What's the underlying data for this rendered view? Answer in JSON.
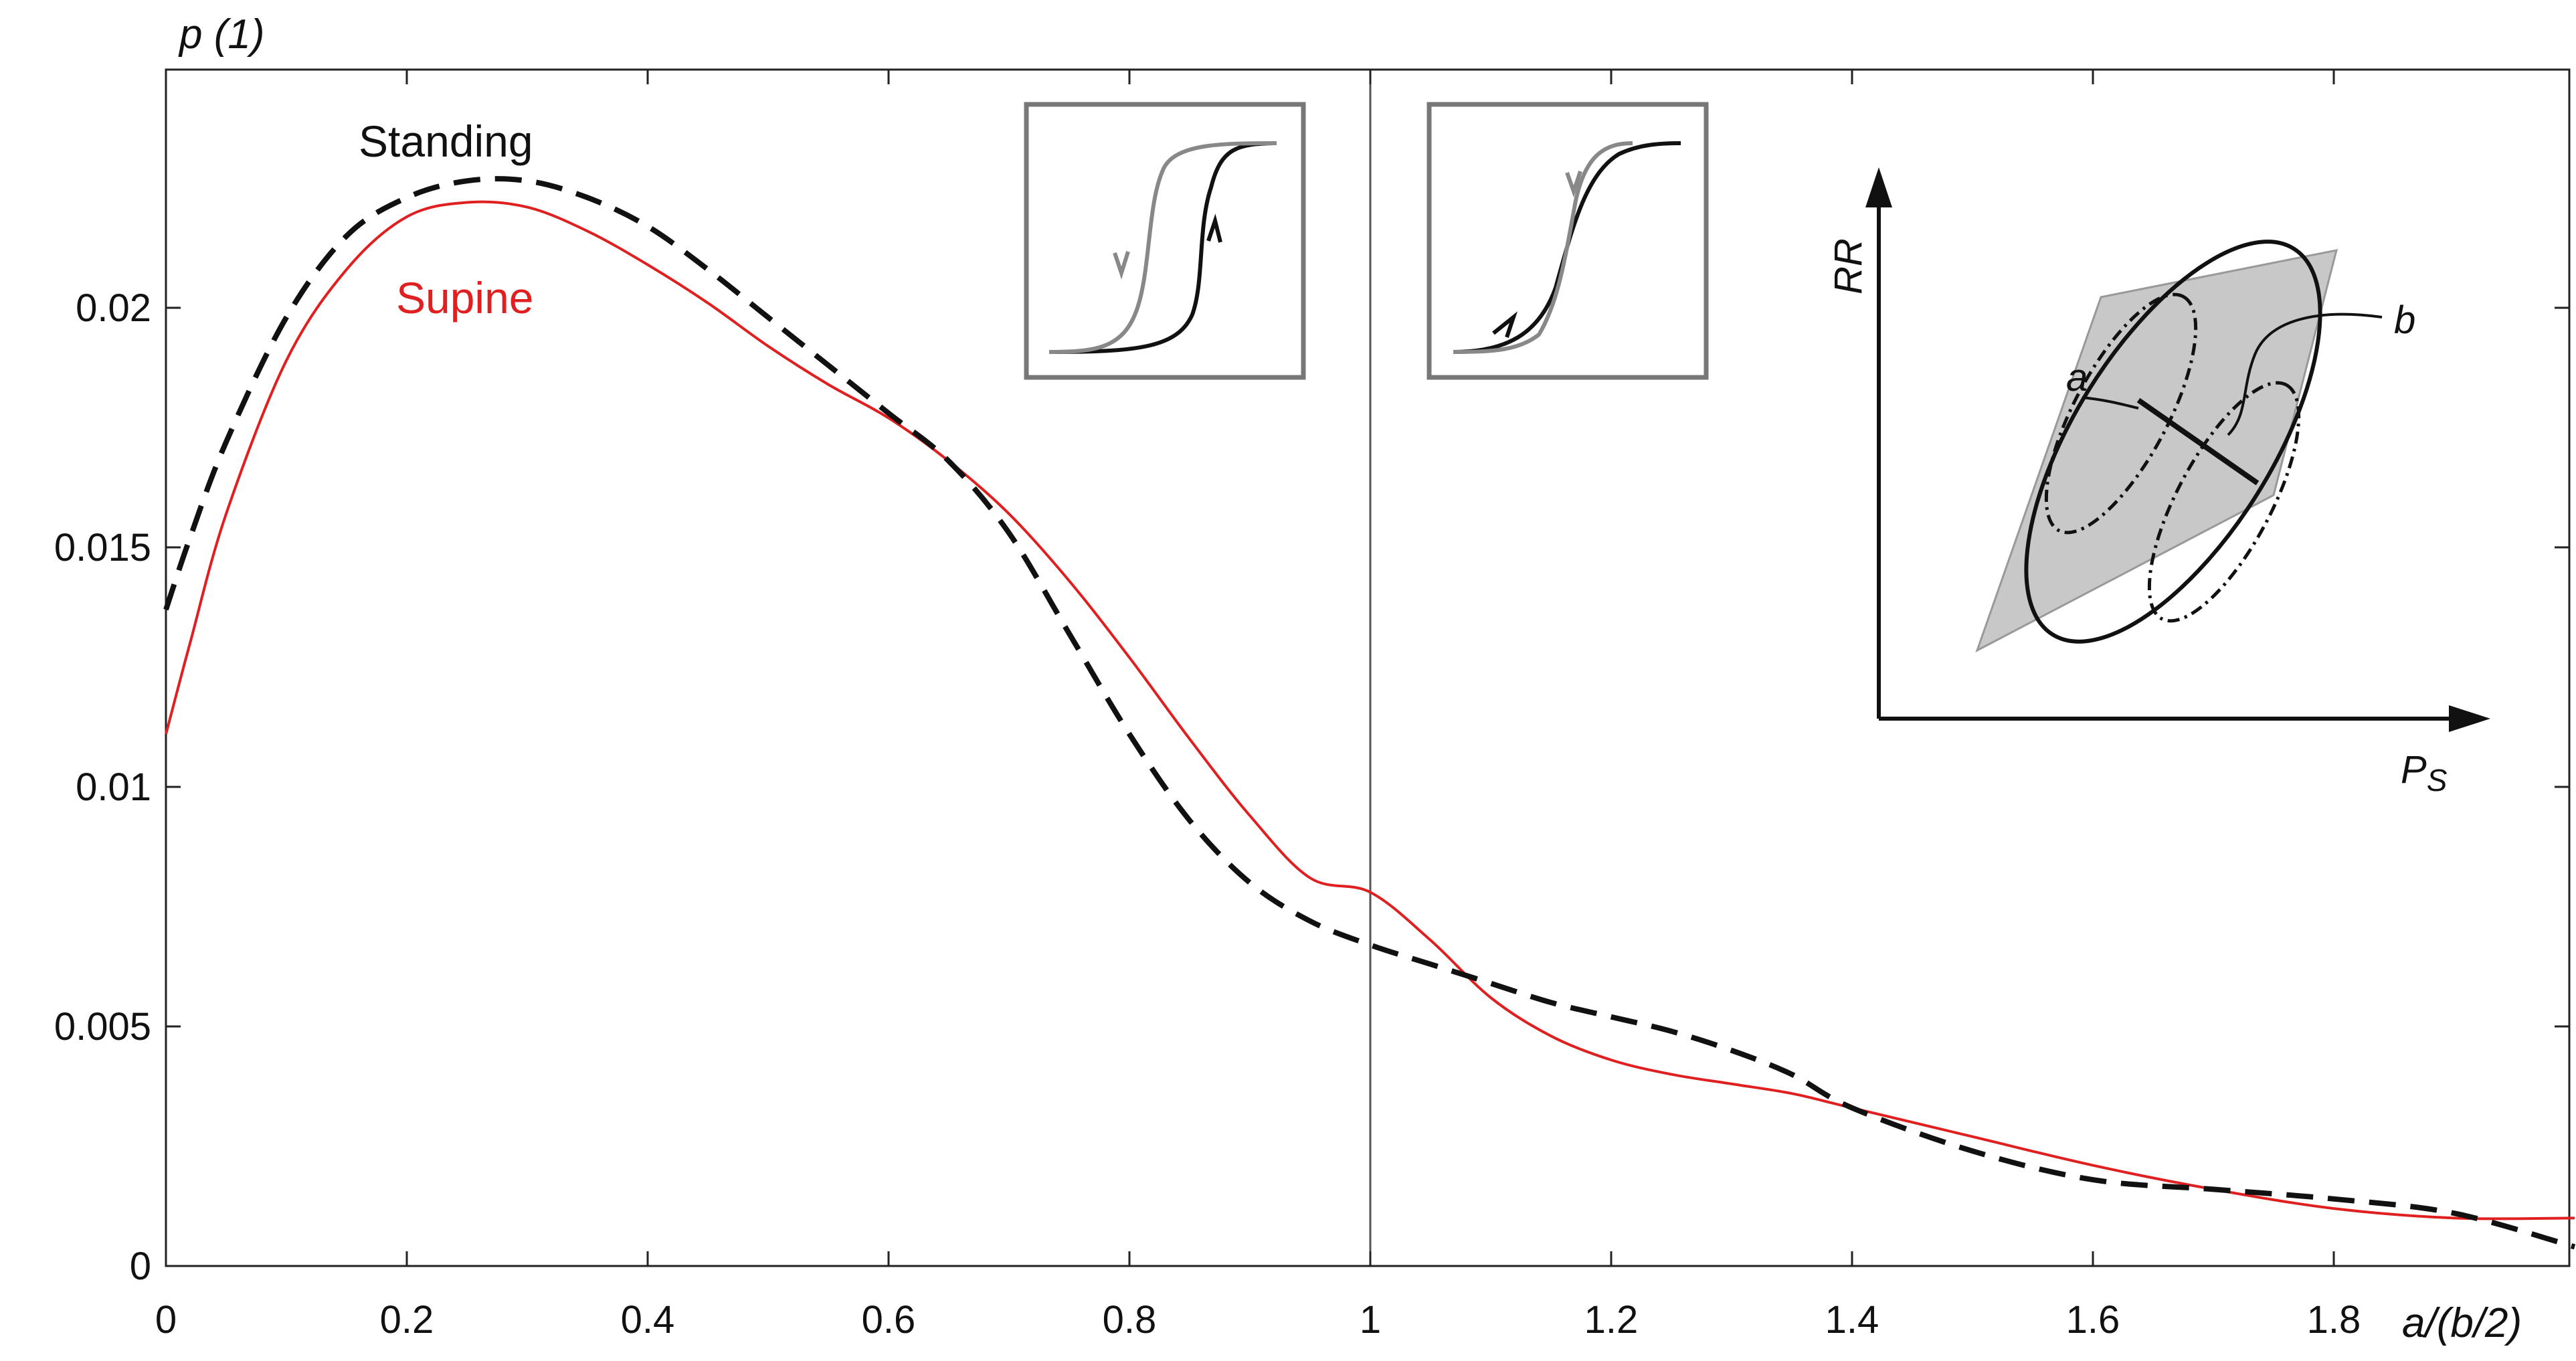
{
  "chart_data": {
    "type": "line",
    "title": "",
    "xlabel": "a/(b/2)",
    "ylabel": "p (1)",
    "xlim": [
      0,
      2.0
    ],
    "ylim": [
      0,
      0.025
    ],
    "x_ticks": [
      "0",
      "0.2",
      "0.4",
      "0.6",
      "0.8",
      "1",
      "1.2",
      "1.4",
      "1.6",
      "1.8"
    ],
    "y_ticks": [
      "0",
      "0.005",
      "0.01",
      "0.015",
      "0.02"
    ],
    "grid": false,
    "vertical_reference_line": 1,
    "series": [
      {
        "name": "Standing",
        "color": "#111111",
        "style": "dashed",
        "x": [
          0,
          0.02,
          0.05,
          0.1,
          0.15,
          0.2,
          0.25,
          0.3,
          0.35,
          0.4,
          0.45,
          0.5,
          0.55,
          0.6,
          0.65,
          0.7,
          0.75,
          0.8,
          0.85,
          0.9,
          0.95,
          1.0,
          1.05,
          1.1,
          1.15,
          1.2,
          1.25,
          1.3,
          1.35,
          1.4,
          1.5,
          1.6,
          1.7,
          1.8,
          1.9,
          2.0
        ],
        "y": [
          0.0137,
          0.0152,
          0.0172,
          0.0198,
          0.0215,
          0.0223,
          0.02265,
          0.02265,
          0.0223,
          0.0217,
          0.0208,
          0.0198,
          0.0188,
          0.0178,
          0.0168,
          0.0153,
          0.0132,
          0.0111,
          0.0093,
          0.008,
          0.0072,
          0.0067,
          0.0063,
          0.0059,
          0.0055,
          0.0052,
          0.0049,
          0.0045,
          0.004,
          0.0033,
          0.0024,
          0.0018,
          0.0016,
          0.0014,
          0.0011,
          0.0004
        ]
      },
      {
        "name": "Supine",
        "color": "#e02020",
        "style": "solid",
        "x": [
          0,
          0.02,
          0.05,
          0.1,
          0.15,
          0.2,
          0.25,
          0.3,
          0.35,
          0.4,
          0.45,
          0.5,
          0.55,
          0.6,
          0.65,
          0.7,
          0.75,
          0.8,
          0.85,
          0.9,
          0.95,
          1.0,
          1.05,
          1.1,
          1.15,
          1.2,
          1.25,
          1.3,
          1.35,
          1.4,
          1.5,
          1.6,
          1.7,
          1.8,
          1.9,
          2.0
        ],
        "y": [
          0.0111,
          0.013,
          0.0157,
          0.0189,
          0.0208,
          0.0219,
          0.0222,
          0.0221,
          0.0216,
          0.0209,
          0.0201,
          0.0192,
          0.0184,
          0.0177,
          0.0168,
          0.0157,
          0.0143,
          0.0127,
          0.011,
          0.0094,
          0.0081,
          0.0078,
          0.0068,
          0.0056,
          0.0048,
          0.0043,
          0.004,
          0.0038,
          0.0036,
          0.0033,
          0.0027,
          0.0021,
          0.0016,
          0.0012,
          0.001,
          0.001
        ]
      }
    ],
    "insets": {
      "hysteresis_left": {
        "description_hidden": true
      },
      "hysteresis_right": {
        "description_hidden": true
      },
      "ellipse": {
        "xlabel_main": "P",
        "xlabel_sub": "S",
        "ylabel": "RR",
        "label_a": "a",
        "label_b": "b"
      }
    }
  }
}
